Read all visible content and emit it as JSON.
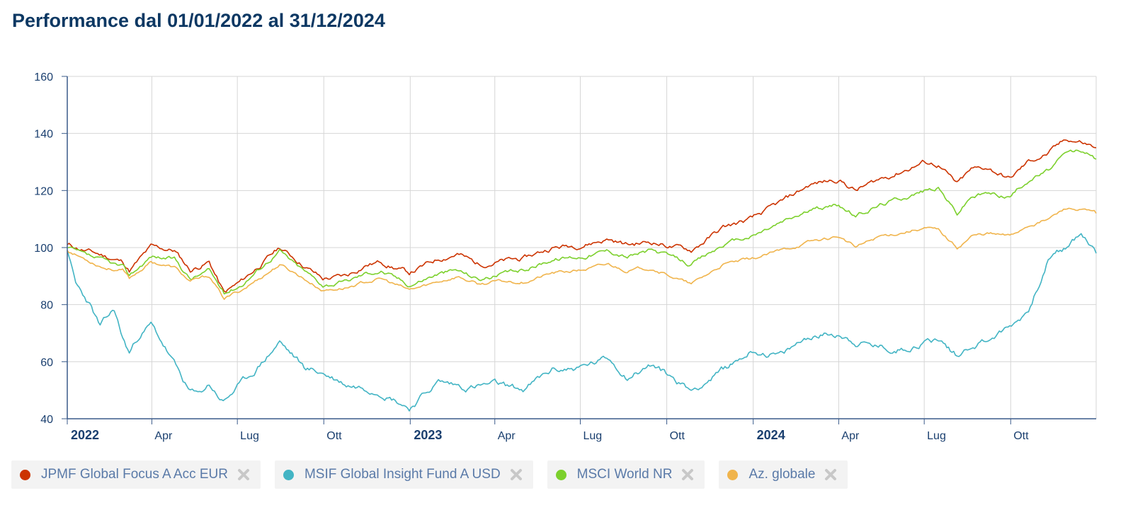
{
  "header": {
    "title": "Performance dal 01/01/2022 al 31/12/2024"
  },
  "legend": [
    {
      "label": "JPMF Global Focus A Acc EUR",
      "color": "#cc3300",
      "remove_icon": "close-x-icon"
    },
    {
      "label": "MSIF Global Insight Fund A USD",
      "color": "#42b4c4",
      "remove_icon": "close-x-icon"
    },
    {
      "label": "MSCI World NR",
      "color": "#7cd02c",
      "remove_icon": "close-x-icon"
    },
    {
      "label": "Az. globale",
      "color": "#f0b44c",
      "remove_icon": "close-x-icon"
    }
  ],
  "chart_data": {
    "type": "line",
    "title": "Performance dal 01/01/2022 al 31/12/2024",
    "xlabel": "",
    "ylabel": "",
    "ylim": [
      40,
      160
    ],
    "xlim": [
      "2022-01-01",
      "2024-12-31"
    ],
    "grid": true,
    "legend_position": "bottom",
    "y_ticks": [
      40,
      60,
      80,
      100,
      120,
      140,
      160
    ],
    "x_ticks": [
      {
        "date": "2022-01-01",
        "label": "2022",
        "bold": true
      },
      {
        "date": "2022-04-01",
        "label": "Apr",
        "bold": false
      },
      {
        "date": "2022-07-01",
        "label": "Lug",
        "bold": false
      },
      {
        "date": "2022-10-01",
        "label": "Ott",
        "bold": false
      },
      {
        "date": "2023-01-01",
        "label": "2023",
        "bold": true
      },
      {
        "date": "2023-04-01",
        "label": "Apr",
        "bold": false
      },
      {
        "date": "2023-07-01",
        "label": "Lug",
        "bold": false
      },
      {
        "date": "2023-10-01",
        "label": "Ott",
        "bold": false
      },
      {
        "date": "2024-01-01",
        "label": "2024",
        "bold": true
      },
      {
        "date": "2024-04-01",
        "label": "Apr",
        "bold": false
      },
      {
        "date": "2024-07-01",
        "label": "Lug",
        "bold": false
      },
      {
        "date": "2024-10-01",
        "label": "Ott",
        "bold": false
      }
    ],
    "series": [
      {
        "name": "JPMF Global Focus A Acc EUR",
        "color": "#cc3300",
        "x": [
          "2022-01-01",
          "2022-01-20",
          "2022-02-10",
          "2022-03-01",
          "2022-03-08",
          "2022-03-31",
          "2022-04-25",
          "2022-05-12",
          "2022-06-01",
          "2022-06-17",
          "2022-07-05",
          "2022-08-15",
          "2022-09-01",
          "2022-09-30",
          "2022-10-25",
          "2022-11-15",
          "2022-12-01",
          "2022-12-31",
          "2023-01-31",
          "2023-02-20",
          "2023-03-15",
          "2023-04-01",
          "2023-05-01",
          "2023-06-01",
          "2023-07-01",
          "2023-07-31",
          "2023-08-20",
          "2023-09-15",
          "2023-10-27",
          "2023-11-30",
          "2023-12-31",
          "2024-02-01",
          "2024-03-01",
          "2024-04-01",
          "2024-04-19",
          "2024-05-15",
          "2024-06-01",
          "2024-07-01",
          "2024-07-16",
          "2024-08-05",
          "2024-08-20",
          "2024-09-06",
          "2024-09-30",
          "2024-10-20",
          "2024-11-10",
          "2024-11-30",
          "2024-12-15",
          "2024-12-31"
        ],
        "values": [
          101,
          99,
          97,
          95,
          92,
          100,
          99,
          92,
          95,
          84,
          88,
          100,
          96,
          89,
          90,
          94,
          95,
          91,
          96,
          98,
          94,
          95,
          96,
          100,
          101,
          103,
          101,
          102,
          99,
          107,
          110,
          116,
          122,
          124,
          120,
          124,
          126,
          130,
          129,
          122,
          127,
          128,
          124,
          130,
          133,
          138,
          137,
          135
        ]
      },
      {
        "name": "MSIF Global Insight Fund A USD",
        "color": "#42b4c4",
        "x": [
          "2022-01-01",
          "2022-01-10",
          "2022-01-25",
          "2022-02-05",
          "2022-02-20",
          "2022-03-01",
          "2022-03-08",
          "2022-03-20",
          "2022-03-31",
          "2022-04-15",
          "2022-05-10",
          "2022-05-20",
          "2022-06-01",
          "2022-06-16",
          "2022-07-01",
          "2022-07-15",
          "2022-08-15",
          "2022-09-10",
          "2022-09-30",
          "2022-10-25",
          "2022-11-15",
          "2022-12-01",
          "2022-12-31",
          "2023-01-31",
          "2023-03-01",
          "2023-04-01",
          "2023-05-01",
          "2023-06-01",
          "2023-07-01",
          "2023-07-31",
          "2023-08-20",
          "2023-09-15",
          "2023-10-27",
          "2023-11-30",
          "2023-12-31",
          "2024-02-01",
          "2024-03-01",
          "2024-04-01",
          "2024-04-19",
          "2024-05-15",
          "2024-06-01",
          "2024-07-01",
          "2024-07-16",
          "2024-08-05",
          "2024-08-20",
          "2024-09-06",
          "2024-09-30",
          "2024-10-20",
          "2024-11-10",
          "2024-11-30",
          "2024-12-15",
          "2024-12-31"
        ],
        "values": [
          99,
          87,
          80,
          72,
          78,
          68,
          63,
          70,
          73,
          65,
          50,
          48,
          52,
          46,
          51,
          55,
          67,
          58,
          56,
          52,
          51,
          50,
          44,
          53,
          51,
          52,
          50,
          57,
          58,
          61,
          55,
          59,
          50,
          57,
          64,
          62,
          69,
          70,
          67,
          65,
          64,
          67,
          68,
          62,
          66,
          68,
          72,
          78,
          96,
          100,
          105,
          98
        ]
      },
      {
        "name": "MSCI World NR",
        "color": "#7cd02c",
        "x": [
          "2022-01-01",
          "2022-01-20",
          "2022-02-10",
          "2022-03-01",
          "2022-03-08",
          "2022-03-31",
          "2022-04-25",
          "2022-05-12",
          "2022-06-01",
          "2022-06-17",
          "2022-07-05",
          "2022-08-15",
          "2022-09-01",
          "2022-09-30",
          "2022-10-25",
          "2022-11-15",
          "2022-12-01",
          "2022-12-31",
          "2023-01-31",
          "2023-02-20",
          "2023-03-15",
          "2023-04-01",
          "2023-05-01",
          "2023-06-01",
          "2023-07-01",
          "2023-07-31",
          "2023-08-20",
          "2023-09-15",
          "2023-10-27",
          "2023-11-30",
          "2023-12-31",
          "2024-02-01",
          "2024-03-01",
          "2024-04-01",
          "2024-04-19",
          "2024-05-15",
          "2024-06-01",
          "2024-07-01",
          "2024-07-16",
          "2024-08-05",
          "2024-08-20",
          "2024-09-06",
          "2024-09-30",
          "2024-10-20",
          "2024-11-10",
          "2024-11-30",
          "2024-12-15",
          "2024-12-31"
        ],
        "values": [
          100,
          97,
          95,
          93,
          90,
          97,
          96,
          89,
          92,
          84,
          87,
          99,
          94,
          87,
          88,
          91,
          92,
          87,
          91,
          92,
          89,
          90,
          92,
          96,
          97,
          99,
          97,
          99,
          94,
          101,
          104,
          109,
          113,
          115,
          111,
          115,
          117,
          120,
          121,
          112,
          118,
          119,
          118,
          124,
          127,
          133,
          134,
          131
        ]
      },
      {
        "name": "Az. globale",
        "color": "#f0b44c",
        "x": [
          "2022-01-01",
          "2022-01-20",
          "2022-02-10",
          "2022-03-01",
          "2022-03-08",
          "2022-03-31",
          "2022-04-25",
          "2022-05-12",
          "2022-06-01",
          "2022-06-17",
          "2022-07-05",
          "2022-08-15",
          "2022-09-01",
          "2022-09-30",
          "2022-10-25",
          "2022-11-15",
          "2022-12-01",
          "2022-12-31",
          "2023-01-31",
          "2023-02-20",
          "2023-03-15",
          "2023-04-01",
          "2023-05-01",
          "2023-06-01",
          "2023-07-01",
          "2023-07-31",
          "2023-08-20",
          "2023-09-15",
          "2023-10-27",
          "2023-11-30",
          "2023-12-31",
          "2024-02-01",
          "2024-03-01",
          "2024-04-01",
          "2024-04-19",
          "2024-05-15",
          "2024-06-01",
          "2024-07-01",
          "2024-07-16",
          "2024-08-05",
          "2024-08-20",
          "2024-09-06",
          "2024-09-30",
          "2024-10-20",
          "2024-11-10",
          "2024-11-30",
          "2024-12-15",
          "2024-12-31"
        ],
        "values": [
          99,
          96,
          93,
          92,
          89,
          95,
          93,
          88,
          90,
          82,
          85,
          94,
          91,
          85,
          86,
          88,
          89,
          85,
          88,
          90,
          87,
          88,
          88,
          91,
          92,
          94,
          92,
          93,
          87,
          94,
          96,
          99,
          102,
          104,
          100,
          104,
          105,
          107,
          106,
          100,
          104,
          105,
          104,
          108,
          110,
          114,
          113,
          112
        ]
      }
    ]
  }
}
